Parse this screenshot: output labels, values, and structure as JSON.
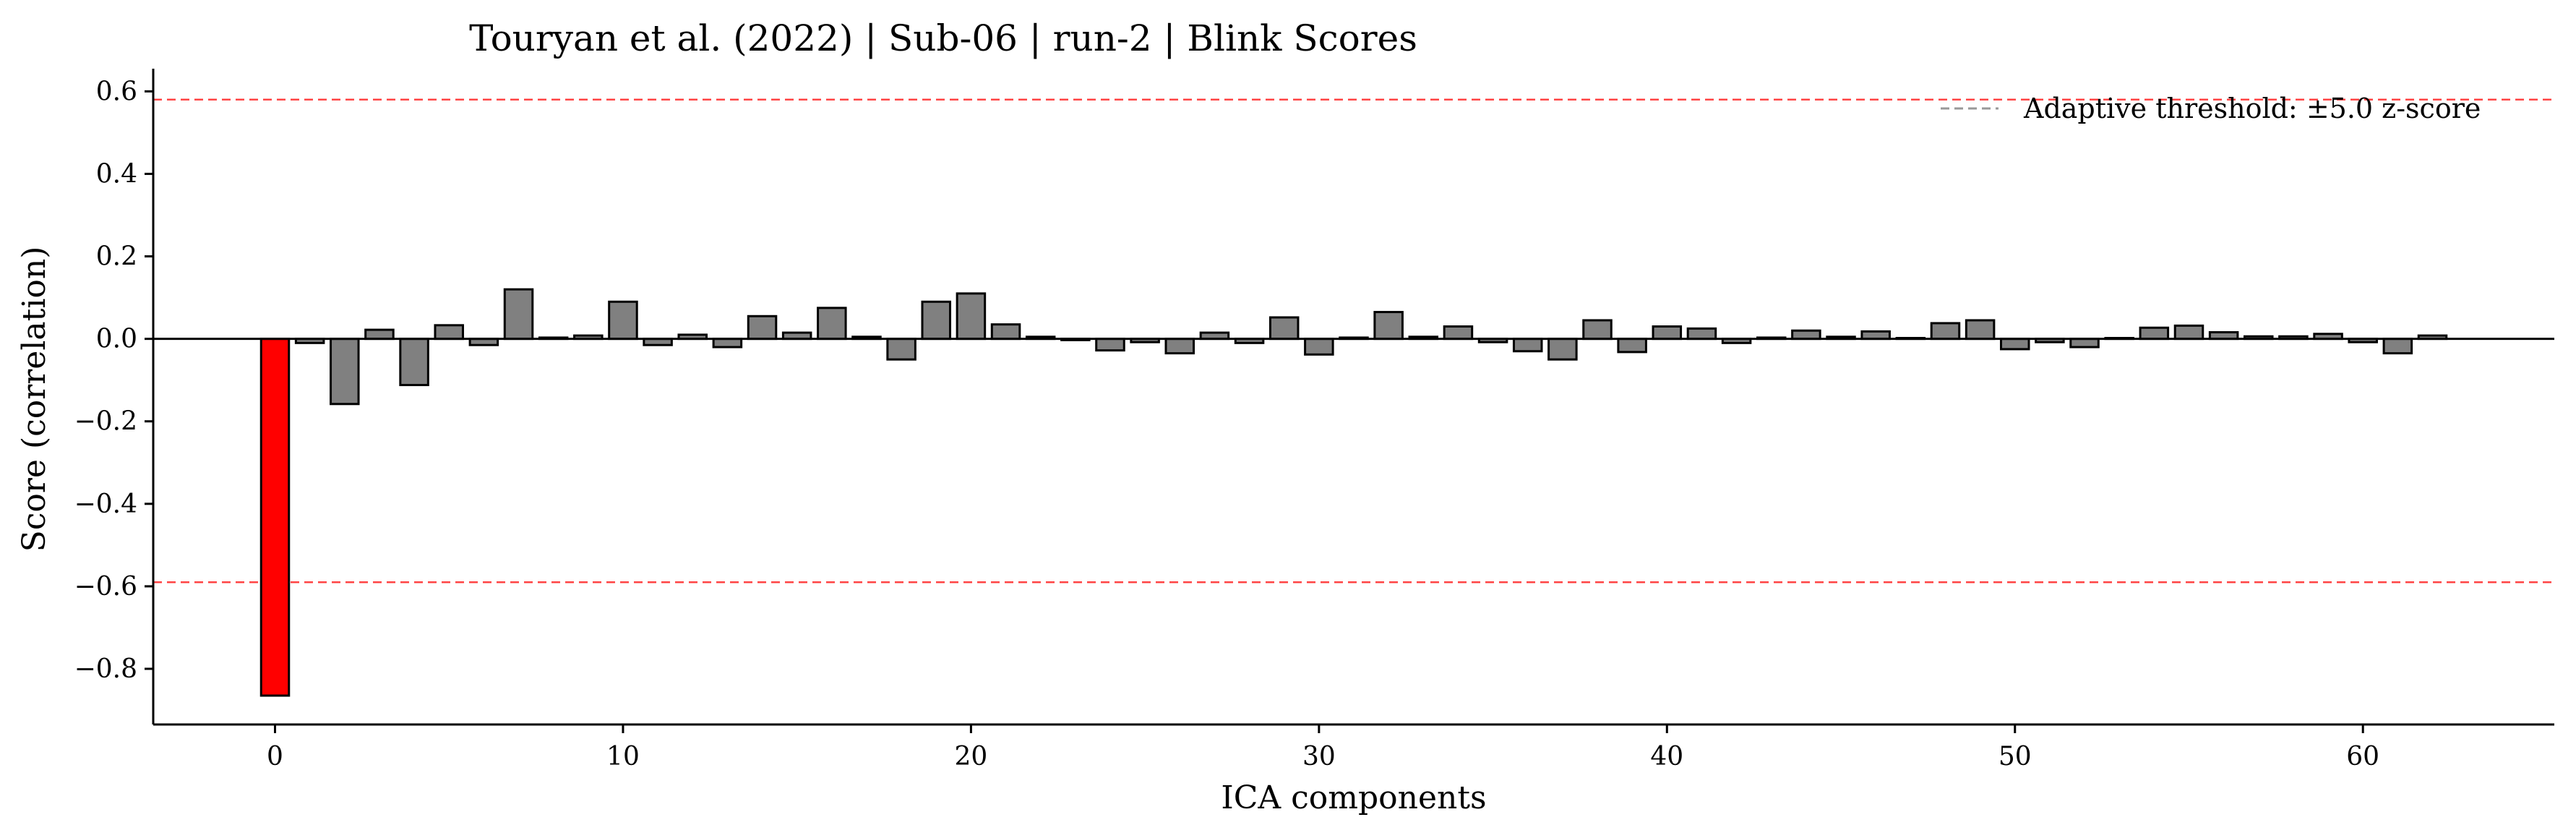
{
  "chart_data": {
    "type": "bar",
    "title": "Touryan et al. (2022) | Sub-06 | run-2 | Blink Scores",
    "xlabel": "ICA components",
    "ylabel": "Score (correlation)",
    "xlim": [
      -3.5,
      65.5
    ],
    "ylim": [
      -0.935,
      0.655
    ],
    "xticks": [
      0,
      10,
      20,
      30,
      40,
      50,
      60
    ],
    "xtick_labels": [
      "0",
      "10",
      "20",
      "30",
      "40",
      "50",
      "60"
    ],
    "yticks": [
      0.6,
      0.4,
      0.2,
      0.0,
      -0.2,
      -0.4,
      -0.6,
      -0.8
    ],
    "ytick_labels": [
      "0.6",
      "0.4",
      "0.2",
      "0.0",
      "−0.2",
      "−0.4",
      "−0.6",
      "−0.8"
    ],
    "x": [
      0,
      1,
      2,
      3,
      4,
      5,
      6,
      7,
      8,
      9,
      10,
      11,
      12,
      13,
      14,
      15,
      16,
      17,
      18,
      19,
      20,
      21,
      22,
      23,
      24,
      25,
      26,
      27,
      28,
      29,
      30,
      31,
      32,
      33,
      34,
      35,
      36,
      37,
      38,
      39,
      40,
      41,
      42,
      43,
      44,
      45,
      46,
      47,
      48,
      49,
      50,
      51,
      52,
      53,
      54,
      55,
      56,
      57,
      58,
      59,
      60,
      61,
      62
    ],
    "values": [
      -0.865,
      -0.01,
      -0.158,
      0.022,
      -0.112,
      0.033,
      -0.015,
      0.12,
      0.003,
      0.008,
      0.09,
      -0.015,
      0.01,
      -0.02,
      0.055,
      0.015,
      0.075,
      0.005,
      -0.05,
      0.09,
      0.11,
      0.035,
      0.005,
      -0.003,
      -0.028,
      -0.008,
      -0.035,
      0.015,
      -0.01,
      0.052,
      -0.038,
      0.003,
      0.065,
      0.005,
      0.03,
      -0.008,
      -0.03,
      -0.05,
      0.045,
      -0.032,
      0.03,
      0.025,
      -0.01,
      0.003,
      0.02,
      0.005,
      0.018,
      0.002,
      0.038,
      0.045,
      -0.025,
      -0.008,
      -0.02,
      0.002,
      0.027,
      0.032,
      0.016,
      0.006,
      0.006,
      0.012,
      -0.008,
      -0.035,
      0.008
    ],
    "flagged_components": [
      0
    ],
    "bar_color": "#808080",
    "flagged_color": "#ff0000",
    "edge_color": "#000000",
    "thresholds": [
      0.58,
      -0.59
    ],
    "threshold_color": "#ff4444",
    "legend": {
      "position": "top-right",
      "label": "Adaptive threshold: ±5.0 z-score",
      "swatch_color": "#999999"
    }
  }
}
